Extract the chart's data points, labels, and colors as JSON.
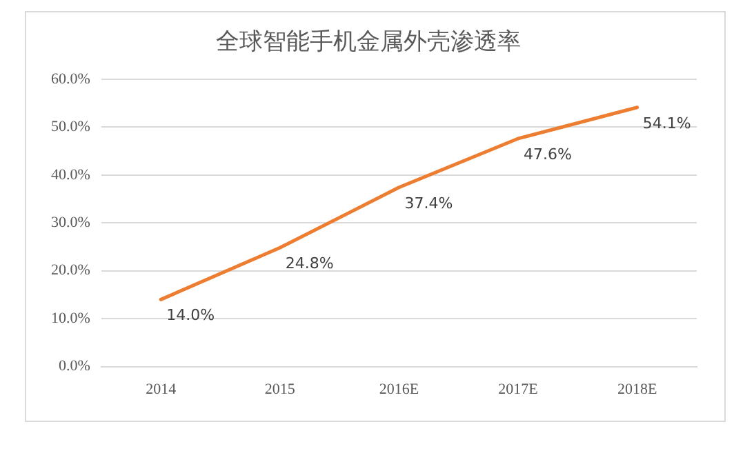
{
  "chart_data": {
    "type": "line",
    "title": "全球智能手机金属外壳渗透率",
    "categories": [
      "2014",
      "2015",
      "2016E",
      "2017E",
      "2018E"
    ],
    "series": [
      {
        "color": "#ed7d31",
        "values": [
          14.0,
          24.8,
          37.4,
          47.6,
          54.1
        ],
        "value_labels": [
          "14.0%",
          "24.8%",
          "37.4%",
          "47.6%",
          "54.1%"
        ]
      }
    ],
    "ylim": [
      0,
      60
    ],
    "yticks": [
      {
        "value": 0,
        "label": "0.0%"
      },
      {
        "value": 10,
        "label": "10.0%"
      },
      {
        "value": 20,
        "label": "20.0%"
      },
      {
        "value": 30,
        "label": "30.0%"
      },
      {
        "value": 40,
        "label": "40.0%"
      },
      {
        "value": 50,
        "label": "50.0%"
      },
      {
        "value": 60,
        "label": "60.0%"
      }
    ],
    "grid": "y",
    "legend": false,
    "marker": "none",
    "line_style": "solid"
  }
}
